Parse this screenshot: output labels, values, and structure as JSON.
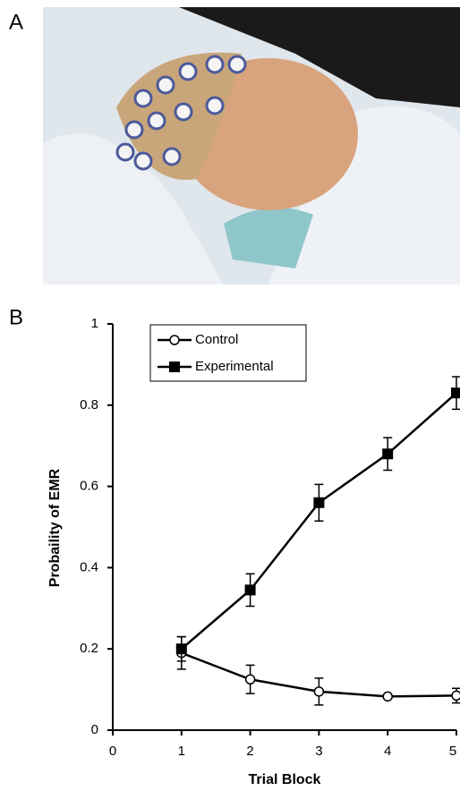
{
  "panel_labels": [
    "A",
    "B"
  ],
  "chart_data": {
    "type": "line",
    "y_label": "Probaility of EMR",
    "x_label": "Trial Block",
    "x": [
      1,
      2,
      3,
      4,
      5
    ],
    "xlim": [
      0,
      5
    ],
    "xticks": [
      0,
      1,
      2,
      3,
      4,
      5
    ],
    "ylim": [
      0,
      1
    ],
    "yticks": [
      0,
      0.2,
      0.4,
      0.6,
      0.8,
      1
    ],
    "legend": "upper left",
    "series": [
      {
        "name": "Control",
        "color": "#000000",
        "marker": "circle",
        "values": [
          0.19,
          0.125,
          0.095,
          0.083,
          0.085
        ],
        "errors": [
          0.04,
          0.035,
          0.033,
          0.005,
          0.018
        ]
      },
      {
        "name": "Experimental",
        "color": "#000000",
        "marker": "square",
        "values": [
          0.2,
          0.345,
          0.56,
          0.68,
          0.83
        ],
        "errors": [
          0.03,
          0.04,
          0.045,
          0.04,
          0.04
        ]
      }
    ]
  }
}
